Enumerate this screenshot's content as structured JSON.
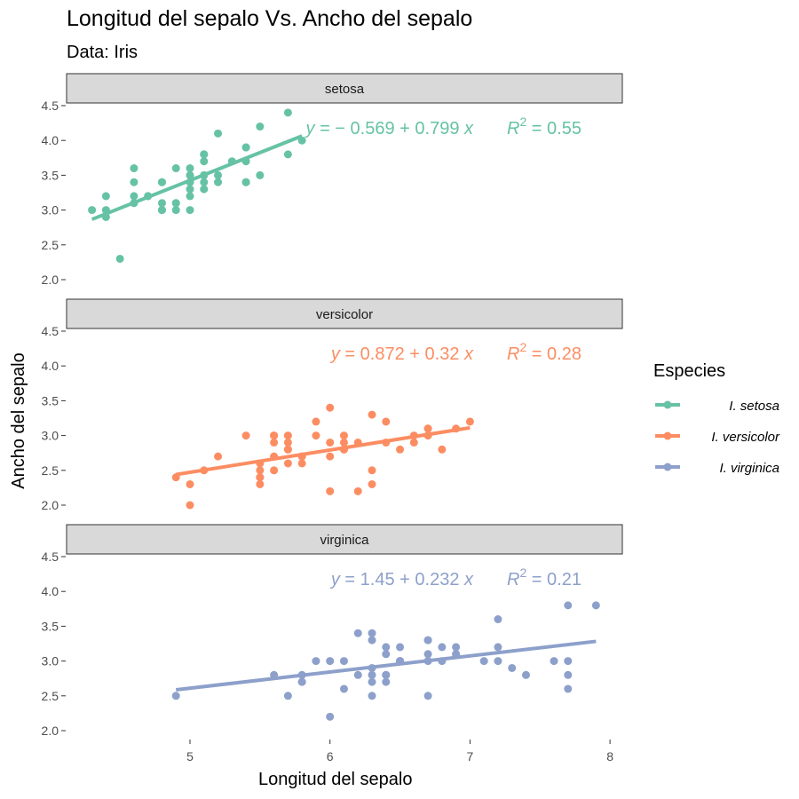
{
  "chart_data": {
    "type": "scatter",
    "title": "Longitud del sepalo Vs. Ancho del sepalo",
    "subtitle": "Data: Iris",
    "xlabel": "Longitud del sepalo",
    "ylabel": "Ancho del sepalo",
    "xlim": [
      4.2,
      8.1
    ],
    "ylim": [
      1.9,
      4.5
    ],
    "x_ticks": [
      5,
      6,
      7,
      8
    ],
    "y_ticks": [
      2.0,
      2.5,
      3.0,
      3.5,
      4.0,
      4.5
    ],
    "y_tick_labels": [
      "2.0",
      "2.5",
      "3.0",
      "3.5",
      "4.0",
      "4.5"
    ],
    "grid": false,
    "legend": {
      "title": "Especies",
      "position": "right",
      "entries": [
        "I. setosa",
        "I. versicolor",
        "I. virginica"
      ]
    },
    "facets": [
      {
        "strip": "setosa",
        "color": "#66c2a5",
        "equation": {
          "lhs": "y",
          "rhs": " = − 0.569 + 0.799 ",
          "var": "x",
          "r2_sym": "R",
          "r2_sup": "2",
          "r2_val": " = 0.55"
        },
        "fit": {
          "intercept": -0.569,
          "slope": 0.799,
          "xrange": [
            4.3,
            5.8
          ]
        },
        "points": [
          [
            5.1,
            3.5
          ],
          [
            4.9,
            3.0
          ],
          [
            4.7,
            3.2
          ],
          [
            4.6,
            3.1
          ],
          [
            5.0,
            3.6
          ],
          [
            5.4,
            3.9
          ],
          [
            4.6,
            3.4
          ],
          [
            5.0,
            3.4
          ],
          [
            4.4,
            2.9
          ],
          [
            4.9,
            3.1
          ],
          [
            5.4,
            3.7
          ],
          [
            4.8,
            3.4
          ],
          [
            4.8,
            3.0
          ],
          [
            4.3,
            3.0
          ],
          [
            5.8,
            4.0
          ],
          [
            5.7,
            4.4
          ],
          [
            5.4,
            3.9
          ],
          [
            5.1,
            3.5
          ],
          [
            5.7,
            3.8
          ],
          [
            5.1,
            3.8
          ],
          [
            5.4,
            3.4
          ],
          [
            5.1,
            3.7
          ],
          [
            4.6,
            3.6
          ],
          [
            5.1,
            3.3
          ],
          [
            4.8,
            3.4
          ],
          [
            5.0,
            3.0
          ],
          [
            5.0,
            3.4
          ],
          [
            5.2,
            3.5
          ],
          [
            5.2,
            3.4
          ],
          [
            4.7,
            3.2
          ],
          [
            4.8,
            3.1
          ],
          [
            5.4,
            3.4
          ],
          [
            5.2,
            4.1
          ],
          [
            5.5,
            4.2
          ],
          [
            4.9,
            3.1
          ],
          [
            5.0,
            3.2
          ],
          [
            5.5,
            3.5
          ],
          [
            4.9,
            3.6
          ],
          [
            4.4,
            3.0
          ],
          [
            5.1,
            3.4
          ],
          [
            5.0,
            3.5
          ],
          [
            4.5,
            2.3
          ],
          [
            4.4,
            3.2
          ],
          [
            5.0,
            3.5
          ],
          [
            5.1,
            3.8
          ],
          [
            4.8,
            3.0
          ],
          [
            5.1,
            3.8
          ],
          [
            4.6,
            3.2
          ],
          [
            5.3,
            3.7
          ],
          [
            5.0,
            3.3
          ]
        ]
      },
      {
        "strip": "versicolor",
        "color": "#fc8d62",
        "equation": {
          "lhs": "y",
          "rhs": " = 0.872 + 0.32 ",
          "var": "x",
          "r2_sym": "R",
          "r2_sup": "2",
          "r2_val": " = 0.28"
        },
        "fit": {
          "intercept": 0.872,
          "slope": 0.32,
          "xrange": [
            4.9,
            7.0
          ]
        },
        "points": [
          [
            7.0,
            3.2
          ],
          [
            6.4,
            3.2
          ],
          [
            6.9,
            3.1
          ],
          [
            5.5,
            2.3
          ],
          [
            6.5,
            2.8
          ],
          [
            5.7,
            2.8
          ],
          [
            6.3,
            3.3
          ],
          [
            4.9,
            2.4
          ],
          [
            6.6,
            2.9
          ],
          [
            5.2,
            2.7
          ],
          [
            5.0,
            2.0
          ],
          [
            5.9,
            3.0
          ],
          [
            6.0,
            2.2
          ],
          [
            6.1,
            2.9
          ],
          [
            5.6,
            2.9
          ],
          [
            6.7,
            3.1
          ],
          [
            5.6,
            3.0
          ],
          [
            5.8,
            2.7
          ],
          [
            6.2,
            2.2
          ],
          [
            5.6,
            2.5
          ],
          [
            5.9,
            3.2
          ],
          [
            6.1,
            2.8
          ],
          [
            6.3,
            2.5
          ],
          [
            6.1,
            2.8
          ],
          [
            6.4,
            2.9
          ],
          [
            6.6,
            3.0
          ],
          [
            6.8,
            2.8
          ],
          [
            6.7,
            3.0
          ],
          [
            6.0,
            2.9
          ],
          [
            5.7,
            2.6
          ],
          [
            5.5,
            2.4
          ],
          [
            5.5,
            2.4
          ],
          [
            5.8,
            2.7
          ],
          [
            6.0,
            2.7
          ],
          [
            5.4,
            3.0
          ],
          [
            6.0,
            3.4
          ],
          [
            6.7,
            3.1
          ],
          [
            6.3,
            2.3
          ],
          [
            5.6,
            3.0
          ],
          [
            5.5,
            2.5
          ],
          [
            5.5,
            2.6
          ],
          [
            6.1,
            3.0
          ],
          [
            5.8,
            2.6
          ],
          [
            5.0,
            2.3
          ],
          [
            5.6,
            2.7
          ],
          [
            5.7,
            3.0
          ],
          [
            5.7,
            2.9
          ],
          [
            6.2,
            2.9
          ],
          [
            5.1,
            2.5
          ],
          [
            5.7,
            2.8
          ]
        ]
      },
      {
        "strip": "virginica",
        "color": "#8da0cb",
        "equation": {
          "lhs": "y",
          "rhs": " = 1.45 + 0.232 ",
          "var": "x",
          "r2_sym": "R",
          "r2_sup": "2",
          "r2_val": " = 0.21"
        },
        "fit": {
          "intercept": 1.45,
          "slope": 0.232,
          "xrange": [
            4.9,
            7.9
          ]
        },
        "points": [
          [
            6.3,
            3.3
          ],
          [
            5.8,
            2.7
          ],
          [
            7.1,
            3.0
          ],
          [
            6.3,
            2.9
          ],
          [
            6.5,
            3.0
          ],
          [
            7.6,
            3.0
          ],
          [
            4.9,
            2.5
          ],
          [
            7.3,
            2.9
          ],
          [
            6.7,
            2.5
          ],
          [
            7.2,
            3.6
          ],
          [
            6.5,
            3.2
          ],
          [
            6.4,
            2.7
          ],
          [
            6.8,
            3.0
          ],
          [
            5.7,
            2.5
          ],
          [
            5.8,
            2.8
          ],
          [
            6.4,
            3.2
          ],
          [
            6.5,
            3.0
          ],
          [
            7.7,
            3.8
          ],
          [
            7.7,
            2.6
          ],
          [
            6.0,
            2.2
          ],
          [
            6.9,
            3.2
          ],
          [
            5.6,
            2.8
          ],
          [
            7.7,
            2.8
          ],
          [
            6.3,
            2.7
          ],
          [
            6.7,
            3.3
          ],
          [
            7.2,
            3.2
          ],
          [
            6.2,
            2.8
          ],
          [
            6.1,
            3.0
          ],
          [
            6.4,
            2.8
          ],
          [
            7.2,
            3.0
          ],
          [
            7.4,
            2.8
          ],
          [
            7.9,
            3.8
          ],
          [
            6.4,
            2.8
          ],
          [
            6.3,
            2.8
          ],
          [
            6.1,
            2.6
          ],
          [
            7.7,
            3.0
          ],
          [
            6.3,
            3.4
          ],
          [
            6.4,
            3.1
          ],
          [
            6.0,
            3.0
          ],
          [
            6.9,
            3.1
          ],
          [
            6.7,
            3.1
          ],
          [
            6.9,
            3.1
          ],
          [
            5.8,
            2.7
          ],
          [
            6.8,
            3.2
          ],
          [
            6.7,
            3.3
          ],
          [
            6.7,
            3.0
          ],
          [
            6.3,
            2.5
          ],
          [
            6.5,
            3.0
          ],
          [
            6.2,
            3.4
          ],
          [
            5.9,
            3.0
          ]
        ]
      }
    ]
  }
}
